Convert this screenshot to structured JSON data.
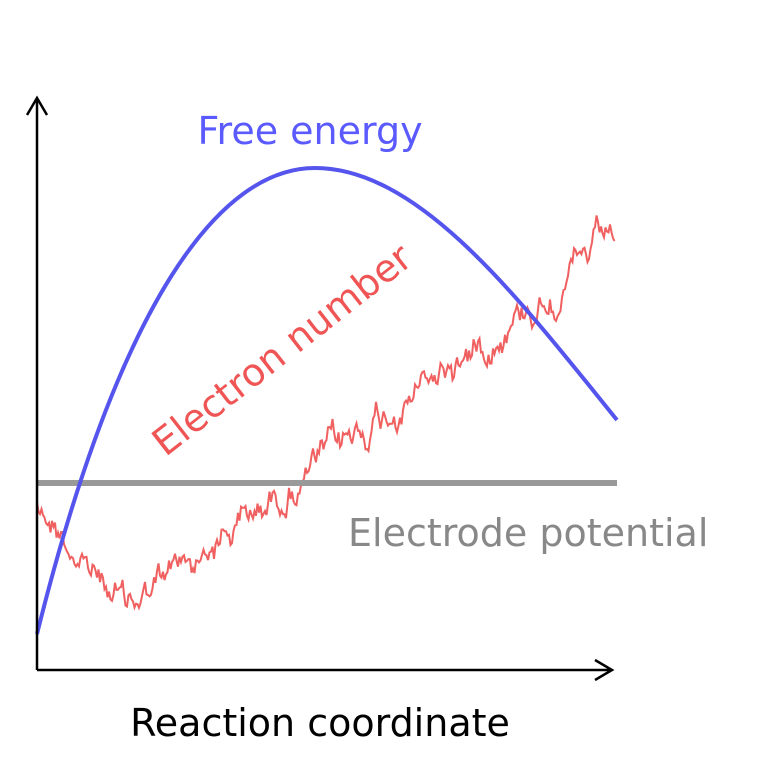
{
  "labels": {
    "free_energy": "Free energy",
    "electron_number": "Electron number",
    "electrode_potential": "Electrode potential",
    "x_axis": "Reaction coordinate"
  }
}
